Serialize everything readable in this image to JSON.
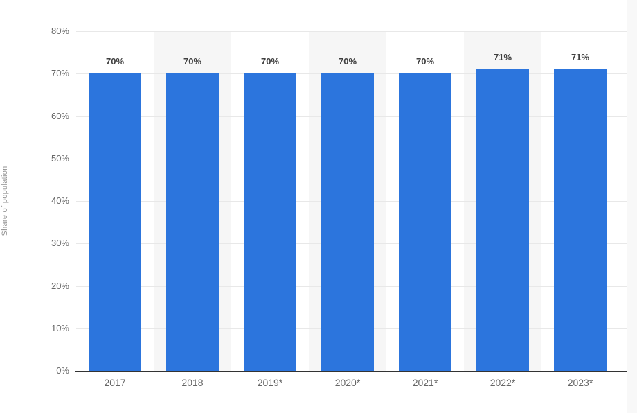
{
  "chart_data": {
    "type": "bar",
    "categories": [
      "2017",
      "2018",
      "2019*",
      "2020*",
      "2021*",
      "2022*",
      "2023*"
    ],
    "values": [
      70,
      70,
      70,
      70,
      70,
      71,
      71
    ],
    "value_labels": [
      "70%",
      "70%",
      "70%",
      "70%",
      "70%",
      "71%",
      "71%"
    ],
    "title": "",
    "xlabel": "",
    "ylabel": "Share of population",
    "ylim": [
      0,
      80
    ],
    "ytick_step": 10,
    "ytick_labels": [
      "0%",
      "10%",
      "20%",
      "30%",
      "40%",
      "50%",
      "60%",
      "70%",
      "80%"
    ],
    "grid": "horizontal",
    "legend": "none",
    "colors": {
      "bar": "#2c75dd",
      "column_stripe": "#f6f6f6",
      "gridline": "#e8e8e8",
      "axis_line": "#333333",
      "tick_label": "#666666",
      "value_label": "#404040",
      "axis_title": "#919191"
    }
  }
}
